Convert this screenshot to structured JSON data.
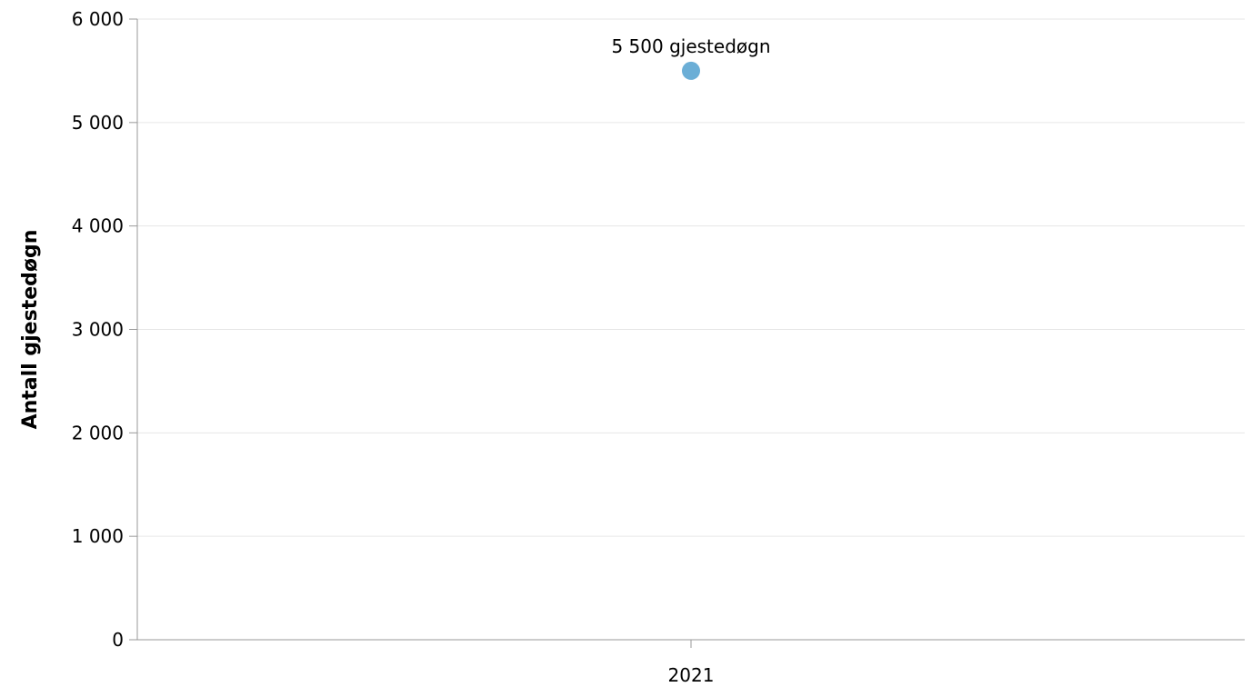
{
  "chart_data": {
    "type": "scatter",
    "categories": [
      "2021"
    ],
    "series": [
      {
        "values": [
          5500
        ],
        "data_labels": [
          "5 500 gjestedøgn"
        ],
        "color": "#6baed6"
      }
    ],
    "xlabel": "",
    "ylabel": "Antall gjestedøgn",
    "ylim": [
      0,
      6000
    ],
    "yticks": [
      0,
      1000,
      2000,
      3000,
      4000,
      5000,
      6000
    ],
    "ytick_labels": [
      "0",
      "1 000",
      "2 000",
      "3 000",
      "4 000",
      "5 000",
      "6 000"
    ],
    "grid": true,
    "legend": "none"
  }
}
